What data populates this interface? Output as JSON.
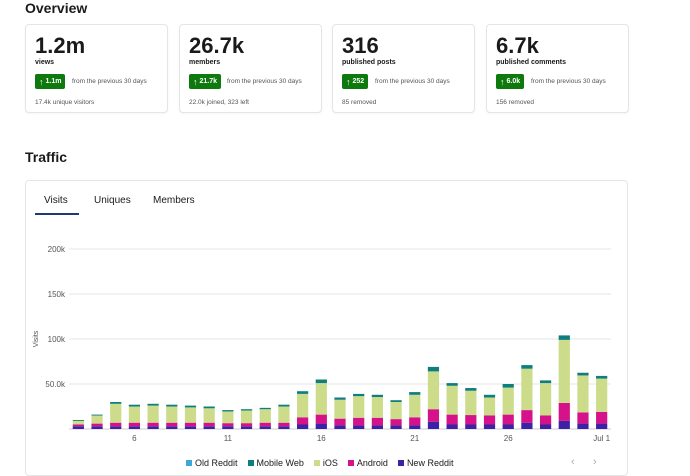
{
  "overview": {
    "title": "Overview",
    "cards": [
      {
        "value": "1.2m",
        "label": "views",
        "badge": "1.1m",
        "compare": "from the previous 30 days",
        "sub": "17.4k unique visitors"
      },
      {
        "value": "26.7k",
        "label": "members",
        "badge": "21.7k",
        "compare": "from the previous 30 days",
        "sub": "22.0k joined, 323 left"
      },
      {
        "value": "316",
        "label": "published posts",
        "badge": "252",
        "compare": "from the previous 30 days",
        "sub": "85 removed"
      },
      {
        "value": "6.7k",
        "label": "published comments",
        "badge": "6.0k",
        "compare": "from the previous 30 days",
        "sub": "156 removed"
      }
    ]
  },
  "traffic": {
    "title": "Traffic",
    "tabs": [
      "Visits",
      "Uniques",
      "Members"
    ],
    "active_tab": "Visits",
    "pager": {
      "prev": "‹",
      "next": "›"
    }
  },
  "colors": {
    "old_reddit": "#3fa7d6",
    "mobile_web": "#0f7e7e",
    "ios": "#cddc8b",
    "android": "#d6128a",
    "new_reddit": "#3b22a6",
    "badge_green": "#0e7a0d"
  },
  "chart_data": {
    "type": "bar",
    "stacked": true,
    "ylabel": "Visits",
    "ylim": [
      0,
      200000
    ],
    "yticks": [
      "50.0k",
      "100k",
      "150k",
      "200k"
    ],
    "ytick_values": [
      50000,
      100000,
      150000,
      200000
    ],
    "xtick_labels": [
      "6",
      "11",
      "16",
      "21",
      "26",
      "Jul 1"
    ],
    "xtick_indices": [
      3,
      8,
      13,
      18,
      23,
      28
    ],
    "legend_position": "bottom",
    "series": [
      {
        "name": "Old Reddit",
        "values": [
          0,
          0,
          0,
          0,
          0,
          0,
          0,
          0,
          0,
          0,
          0,
          0,
          0,
          0,
          0,
          0,
          0,
          0,
          0,
          0,
          0,
          0,
          0,
          0,
          0,
          0,
          0,
          0,
          0
        ]
      },
      {
        "name": "Mobile Web",
        "values": [
          1000,
          1000,
          2000,
          2000,
          2000,
          2000,
          2000,
          2000,
          1500,
          1500,
          1500,
          2000,
          3000,
          4000,
          2500,
          2500,
          2500,
          2000,
          3000,
          5000,
          3000,
          3000,
          3000,
          4000,
          4000,
          3000,
          5000,
          3000,
          3000
        ]
      },
      {
        "name": "iOS",
        "values": [
          4000,
          9000,
          21000,
          18000,
          19000,
          18000,
          17000,
          16000,
          13000,
          14000,
          15000,
          18000,
          26000,
          35000,
          21000,
          24000,
          23000,
          19000,
          25000,
          42000,
          32000,
          27000,
          20000,
          30000,
          46000,
          36000,
          70000,
          41000,
          37000
        ]
      },
      {
        "name": "Android",
        "values": [
          2000,
          3000,
          4000,
          4000,
          4000,
          4000,
          4000,
          4000,
          3500,
          3500,
          4000,
          4000,
          8000,
          10000,
          7500,
          8500,
          8500,
          7000,
          9000,
          14000,
          11000,
          10500,
          10000,
          11000,
          14000,
          10000,
          20000,
          12500,
          13000
        ]
      },
      {
        "name": "New Reddit",
        "values": [
          3000,
          3000,
          3000,
          3000,
          3000,
          3000,
          3000,
          3000,
          3000,
          3000,
          3000,
          3000,
          5000,
          6000,
          4000,
          4000,
          4000,
          4000,
          4000,
          8000,
          5000,
          5000,
          5000,
          5000,
          7000,
          5000,
          9000,
          6000,
          6000
        ]
      }
    ]
  }
}
